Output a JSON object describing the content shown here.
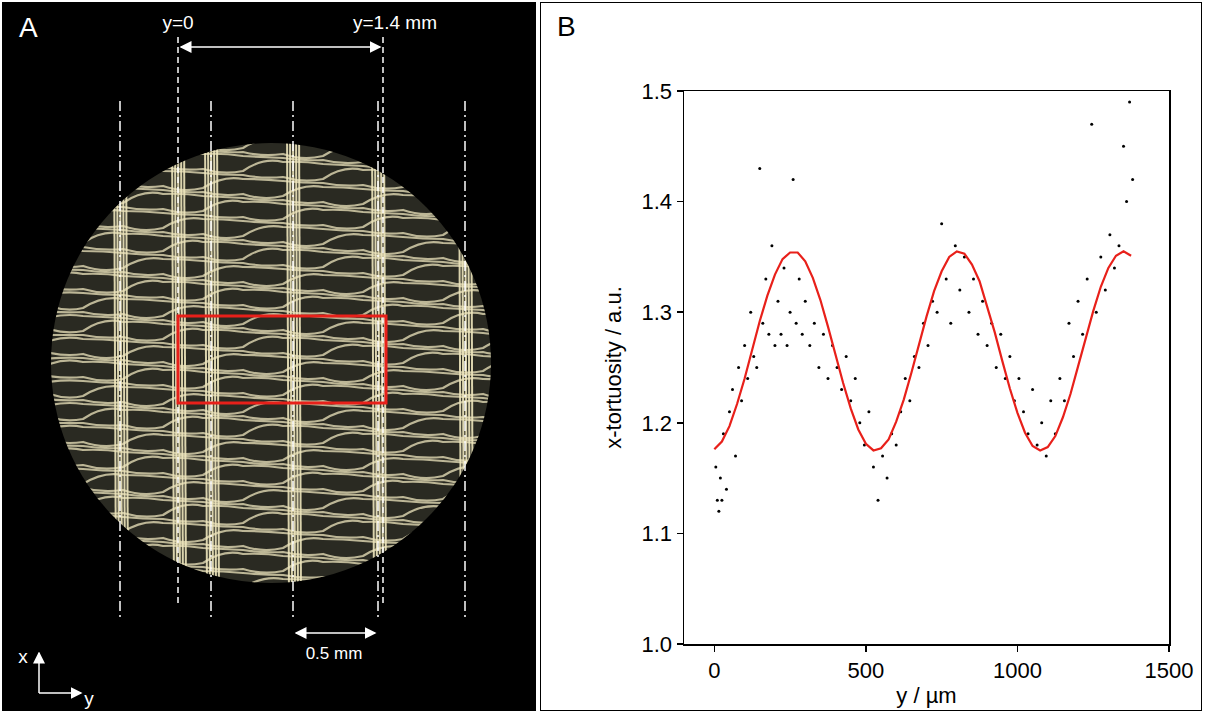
{
  "chart_data": {
    "type": "scatter",
    "x_label": "y / µm",
    "y_label": "x-tortuosity / a.u.",
    "xlim": [
      -100,
      1500
    ],
    "xticks": [
      0,
      500,
      1000,
      1500
    ],
    "ylim": [
      1.0,
      1.5
    ],
    "yticks": [
      {
        "value": 1.0,
        "label": "1.0"
      },
      1.1,
      1.2,
      1.3,
      1.4,
      {
        "value": 1.5,
        "label": "1.5"
      }
    ],
    "grid": false,
    "tick_labels": true,
    "series": [
      {
        "type": "scatter",
        "color": "#000000",
        "marker": "dot",
        "x": [
          5,
          10,
          15,
          20,
          25,
          30,
          40,
          50,
          60,
          70,
          80,
          90,
          100,
          110,
          120,
          130,
          140,
          150,
          160,
          170,
          180,
          190,
          200,
          210,
          220,
          230,
          240,
          250,
          260,
          270,
          280,
          290,
          300,
          315,
          330,
          345,
          360,
          375,
          390,
          405,
          420,
          435,
          450,
          465,
          480,
          495,
          510,
          525,
          540,
          555,
          570,
          585,
          600,
          615,
          630,
          645,
          660,
          675,
          690,
          705,
          720,
          735,
          750,
          765,
          780,
          795,
          810,
          825,
          840,
          855,
          870,
          885,
          900,
          915,
          930,
          945,
          960,
          975,
          990,
          1005,
          1020,
          1035,
          1050,
          1065,
          1080,
          1095,
          1110,
          1125,
          1140,
          1155,
          1170,
          1185,
          1200,
          1215,
          1230,
          1245,
          1260,
          1275,
          1290,
          1305,
          1320,
          1335,
          1350,
          1360,
          1370,
          1380
        ],
        "values": [
          1.16,
          1.13,
          1.12,
          1.15,
          1.13,
          1.19,
          1.14,
          1.21,
          1.23,
          1.17,
          1.25,
          1.22,
          1.27,
          1.24,
          1.3,
          1.26,
          1.25,
          1.43,
          1.29,
          1.33,
          1.28,
          1.36,
          1.27,
          1.31,
          1.28,
          1.34,
          1.27,
          1.3,
          1.42,
          1.29,
          1.33,
          1.28,
          1.31,
          1.27,
          1.29,
          1.25,
          1.28,
          1.24,
          1.27,
          1.25,
          1.23,
          1.26,
          1.22,
          1.24,
          1.2,
          1.18,
          1.21,
          1.16,
          1.13,
          1.17,
          1.15,
          1.19,
          1.18,
          1.21,
          1.24,
          1.22,
          1.26,
          1.25,
          1.29,
          1.27,
          1.31,
          1.3,
          1.38,
          1.33,
          1.29,
          1.36,
          1.32,
          1.35,
          1.3,
          1.33,
          1.28,
          1.31,
          1.27,
          1.29,
          1.25,
          1.28,
          1.24,
          1.26,
          1.22,
          1.24,
          1.21,
          1.19,
          1.23,
          1.18,
          1.2,
          1.17,
          1.22,
          1.19,
          1.24,
          1.22,
          1.29,
          1.26,
          1.31,
          1.28,
          1.33,
          1.47,
          1.3,
          1.35,
          1.32,
          1.37,
          1.34,
          1.36,
          1.45,
          1.4,
          1.49,
          1.42
        ]
      },
      {
        "type": "line",
        "color": "#e8201a",
        "line_style": "solid",
        "x": [
          0,
          25,
          50,
          75,
          100,
          125,
          150,
          175,
          200,
          225,
          250,
          275,
          300,
          325,
          350,
          375,
          400,
          425,
          450,
          475,
          500,
          525,
          550,
          575,
          600,
          625,
          650,
          675,
          700,
          725,
          750,
          775,
          800,
          825,
          850,
          875,
          900,
          925,
          950,
          975,
          1000,
          1025,
          1050,
          1075,
          1100,
          1125,
          1150,
          1175,
          1200,
          1225,
          1250,
          1275,
          1300,
          1325,
          1350,
          1375
        ],
        "values": [
          1.176,
          1.183,
          1.197,
          1.217,
          1.24,
          1.266,
          1.292,
          1.315,
          1.334,
          1.348,
          1.354,
          1.354,
          1.346,
          1.331,
          1.311,
          1.287,
          1.261,
          1.236,
          1.213,
          1.194,
          1.181,
          1.175,
          1.177,
          1.185,
          1.201,
          1.221,
          1.245,
          1.271,
          1.296,
          1.319,
          1.337,
          1.35,
          1.355,
          1.353,
          1.343,
          1.328,
          1.306,
          1.282,
          1.256,
          1.231,
          1.209,
          1.191,
          1.179,
          1.175,
          1.178,
          1.188,
          1.205,
          1.226,
          1.251,
          1.276,
          1.301,
          1.323,
          1.34,
          1.351,
          1.355,
          1.351
        ]
      }
    ]
  },
  "chart_panel": {
    "label": "B"
  },
  "image_panel": {
    "label": "A",
    "left_marker": "y=0",
    "right_marker": "y=1.4 mm",
    "scale_bar": "0.5 mm",
    "axis_vertical": "x",
    "axis_horizontal": "y"
  }
}
